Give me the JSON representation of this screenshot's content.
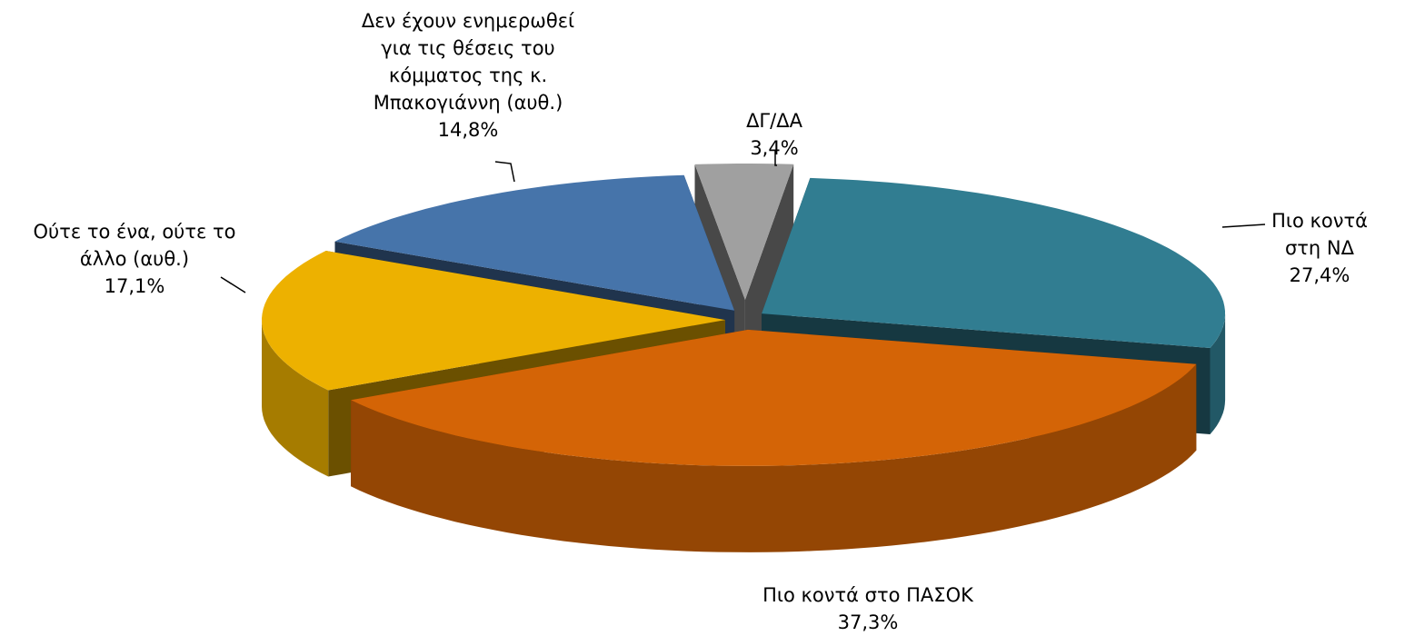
{
  "chart_data": {
    "type": "pie3d",
    "categories": [
      "Πιο κοντά στη ΝΔ",
      "Πιο κοντά στο ΠΑΣΟΚ",
      "Ούτε το ένα, ούτε το\nάλλο (αυθ.)",
      "Δεν έχουν ενημερωθεί\nγια τις θέσεις του\nκόμματος της κ.\nΜπακογιάννη (αυθ.)",
      "ΔΓ/ΔΑ"
    ],
    "values": [
      27.4,
      37.3,
      17.1,
      14.8,
      3.4
    ],
    "value_labels": [
      "27,4%",
      "37,3%",
      "17,1%",
      "14,8%",
      "3,4%"
    ],
    "colors": [
      "#317d91",
      "#d46406",
      "#edb100",
      "#4674aa",
      "#a0a0a0"
    ]
  }
}
